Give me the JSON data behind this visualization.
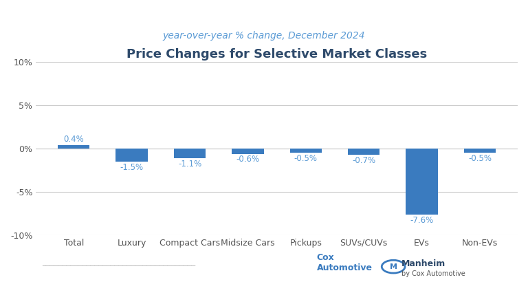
{
  "title": "Price Changes for Selective Market Classes",
  "subtitle": "year-over-year % change, December 2024",
  "categories": [
    "Total",
    "Luxury",
    "Compact Cars",
    "Midsize Cars",
    "Pickups",
    "SUVs/CUVs",
    "EVs",
    "Non-EVs"
  ],
  "values": [
    0.4,
    -1.5,
    -1.1,
    -0.6,
    -0.5,
    -0.7,
    -7.6,
    -0.5
  ],
  "labels": [
    "0.4%",
    "-1.5%",
    "-1.1%",
    "-0.6%",
    "-0.5%",
    "-0.7%",
    "-7.6%",
    "-0.5%"
  ],
  "bar_color": "#3a7bbf",
  "title_color": "#2e4a6b",
  "subtitle_color": "#5b9bd5",
  "background_color": "#ffffff",
  "ylim": [
    -10,
    10
  ],
  "yticks": [
    -10,
    -5,
    0,
    5,
    10
  ],
  "ytick_labels": [
    "-10%",
    "-5%",
    "0%",
    "5%",
    "10%"
  ],
  "grid_color": "#cccccc",
  "label_color": "#5b9bd5",
  "axis_label_color": "#555555"
}
